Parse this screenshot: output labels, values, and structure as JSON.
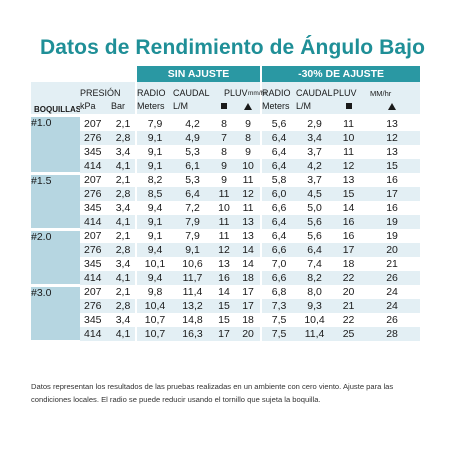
{
  "title": "Datos de Rendimiento de Ángulo Bajo",
  "sections": {
    "sin_ajuste": "SIN AJUSTE",
    "ajuste_30": "-30% DE AJUSTE"
  },
  "headers": {
    "boquillas": "BOQUILLAS",
    "presion": "PRESIÓN",
    "kpa": "kPa",
    "bar": "Bar",
    "radio": "RADIO",
    "meters": "Meters",
    "caudal": "CAUDAL",
    "lm": "L/M",
    "pluv": "PLUV",
    "mm_hr_overlap": "mm/hr",
    "mm_hr": "MM/hr",
    "radio2": "RADIO",
    "meters2": "Meters",
    "caudal2": "CAUDAL",
    "lm2": "L/M",
    "pluv2": "PLUV"
  },
  "nozzles": [
    {
      "id": "#1.0",
      "rows": [
        [
          "207",
          "2,1",
          "7,9",
          "4,2",
          "8",
          "9",
          "5,6",
          "2,9",
          "11",
          "13"
        ],
        [
          "276",
          "2,8",
          "9,1",
          "4,9",
          "7",
          "8",
          "6,4",
          "3,4",
          "10",
          "12"
        ],
        [
          "345",
          "3,4",
          "9,1",
          "5,3",
          "8",
          "9",
          "6,4",
          "3,7",
          "11",
          "13"
        ],
        [
          "414",
          "4,1",
          "9,1",
          "6,1",
          "9",
          "10",
          "6,4",
          "4,2",
          "12",
          "15"
        ]
      ]
    },
    {
      "id": "#1.5",
      "rows": [
        [
          "207",
          "2,1",
          "8,2",
          "5,3",
          "9",
          "11",
          "5,8",
          "3,7",
          "13",
          "16"
        ],
        [
          "276",
          "2,8",
          "8,5",
          "6,4",
          "11",
          "12",
          "6,0",
          "4,5",
          "15",
          "17"
        ],
        [
          "345",
          "3,4",
          "9,4",
          "7,2",
          "10",
          "11",
          "6,6",
          "5,0",
          "14",
          "16"
        ],
        [
          "414",
          "4,1",
          "9,1",
          "7,9",
          "11",
          "13",
          "6,4",
          "5,6",
          "16",
          "19"
        ]
      ]
    },
    {
      "id": "#2.0",
      "rows": [
        [
          "207",
          "2,1",
          "9,1",
          "7,9",
          "11",
          "13",
          "6,4",
          "5,6",
          "16",
          "19"
        ],
        [
          "276",
          "2,8",
          "9,4",
          "9,1",
          "12",
          "14",
          "6,6",
          "6,4",
          "17",
          "20"
        ],
        [
          "345",
          "3,4",
          "10,1",
          "10,6",
          "13",
          "14",
          "7,0",
          "7,4",
          "18",
          "21"
        ],
        [
          "414",
          "4,1",
          "9,4",
          "11,7",
          "16",
          "18",
          "6,6",
          "8,2",
          "22",
          "26"
        ]
      ]
    },
    {
      "id": "#3.0",
      "rows": [
        [
          "207",
          "2,1",
          "9,8",
          "11,4",
          "14",
          "17",
          "6,8",
          "8,0",
          "20",
          "24"
        ],
        [
          "276",
          "2,8",
          "10,4",
          "13,2",
          "15",
          "17",
          "7,3",
          "9,3",
          "21",
          "24"
        ],
        [
          "345",
          "3,4",
          "10,7",
          "14,8",
          "15",
          "18",
          "7,5",
          "10,4",
          "22",
          "26"
        ],
        [
          "414",
          "4,1",
          "10,7",
          "16,3",
          "17",
          "20",
          "7,5",
          "11,4",
          "25",
          "28"
        ]
      ]
    }
  ],
  "footnote": "Datos representan los resultados de las pruebas realizadas en un ambiente con cero viento. Ajuste para las condiciones locales. El radio se puede reducir usando el tornillo que sujeta la boquilla."
}
